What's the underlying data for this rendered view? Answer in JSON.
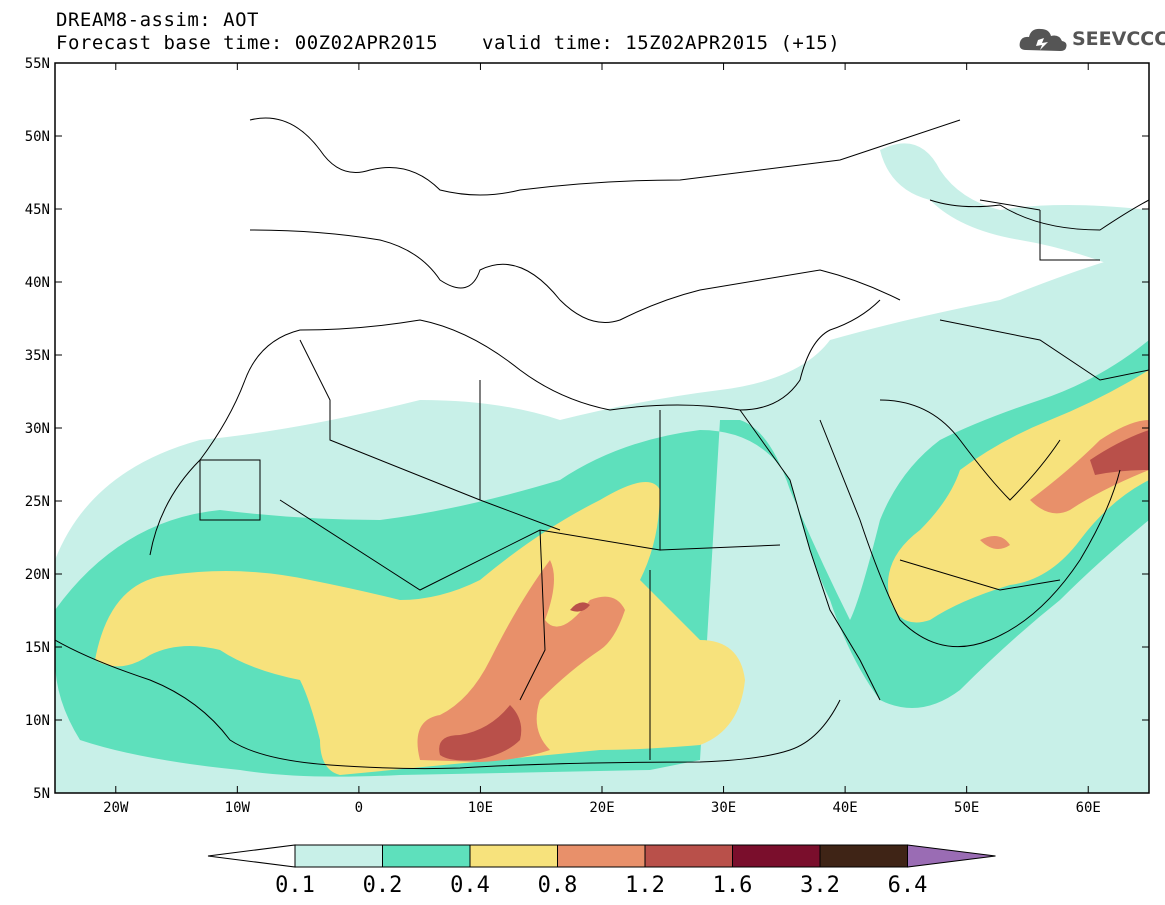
{
  "header": {
    "line1": "DREAM8-assim: AOT",
    "base_time": "Forecast base time: 00Z02APR2015",
    "valid_time": "valid time: 15Z02APR2015 (+15)",
    "logo_text": "SEEVCCC"
  },
  "map": {
    "lat_labels": [
      "55N",
      "50N",
      "45N",
      "40N",
      "35N",
      "30N",
      "25N",
      "20N",
      "15N",
      "10N",
      "5N"
    ],
    "lon_labels": [
      "20W",
      "10W",
      "0",
      "10E",
      "20E",
      "30E",
      "40E",
      "50E",
      "60E"
    ]
  },
  "legend": {
    "labels": [
      "0.1",
      "0.2",
      "0.4",
      "0.8",
      "1.2",
      "1.6",
      "3.2",
      "6.4"
    ],
    "colors": [
      "#ffffff",
      "#c8f0e8",
      "#5ee0bc",
      "#f7e27c",
      "#e8906a",
      "#b9504a",
      "#7a0e2c",
      "#3f2416",
      "#9a6cb4"
    ]
  }
}
